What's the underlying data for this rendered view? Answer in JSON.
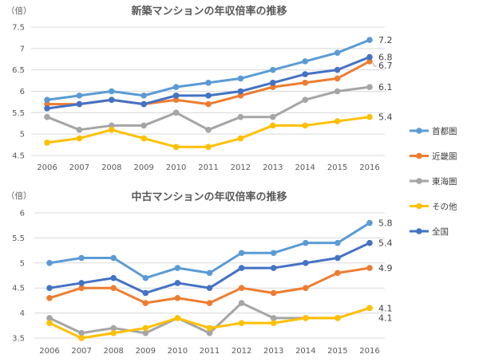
{
  "legend": {
    "placement": "right",
    "items": [
      {
        "name": "首都圏",
        "color": "#5B9BD5"
      },
      {
        "name": "近畿圏",
        "color": "#ED7D31"
      },
      {
        "name": "東海圏",
        "color": "#A5A5A5"
      },
      {
        "name": "その他",
        "color": "#FFC000"
      },
      {
        "name": "全国",
        "color": "#4472C4"
      }
    ]
  },
  "chart_data": [
    {
      "type": "line",
      "title": "新築マンションの年収倍率の推移",
      "ylabel": "（倍）",
      "xlabel": "",
      "categories": [
        "2006",
        "2007",
        "2008",
        "2009",
        "2010",
        "2011",
        "2012",
        "2013",
        "2014",
        "2015",
        "2016"
      ],
      "ylim": [
        4.5,
        7.5
      ],
      "yticks": [
        "4.5",
        "5",
        "5.5",
        "6",
        "6.5",
        "7",
        "7.5"
      ],
      "grid": true,
      "series": [
        {
          "name": "首都圏",
          "color": "#5B9BD5",
          "values": [
            5.8,
            5.9,
            6.0,
            5.9,
            6.1,
            6.2,
            6.3,
            6.5,
            6.7,
            6.9,
            7.2
          ],
          "end_label": "7.2"
        },
        {
          "name": "近畿圏",
          "color": "#ED7D31",
          "values": [
            5.7,
            5.7,
            5.8,
            5.7,
            5.8,
            5.7,
            5.9,
            6.1,
            6.2,
            6.3,
            6.7
          ],
          "end_label": "6.7"
        },
        {
          "name": "東海圏",
          "color": "#A5A5A5",
          "values": [
            5.4,
            5.1,
            5.2,
            5.2,
            5.5,
            5.1,
            5.4,
            5.4,
            5.8,
            6.0,
            6.1
          ],
          "end_label": "6.1"
        },
        {
          "name": "その他",
          "color": "#FFC000",
          "values": [
            4.8,
            4.9,
            5.1,
            4.9,
            4.7,
            4.7,
            4.9,
            5.2,
            5.2,
            5.3,
            5.4
          ],
          "end_label": "5.4"
        },
        {
          "name": "全国",
          "color": "#4472C4",
          "values": [
            5.6,
            5.7,
            5.8,
            5.7,
            5.9,
            5.9,
            6.0,
            6.2,
            6.4,
            6.5,
            6.8
          ],
          "end_label": "6.8"
        }
      ]
    },
    {
      "type": "line",
      "title": "中古マンションの年収倍率の推移",
      "ylabel": "（倍）",
      "xlabel": "",
      "categories": [
        "2006",
        "2007",
        "2008",
        "2009",
        "2010",
        "2011",
        "2012",
        "2013",
        "2014",
        "2015",
        "2016"
      ],
      "ylim": [
        3.5,
        6
      ],
      "yticks": [
        "3.5",
        "4",
        "4.5",
        "5",
        "5.5",
        "6"
      ],
      "grid": true,
      "series": [
        {
          "name": "首都圏",
          "color": "#5B9BD5",
          "values": [
            5.0,
            5.1,
            5.1,
            4.7,
            4.9,
            4.8,
            5.2,
            5.2,
            5.4,
            5.4,
            5.8
          ],
          "end_label": "5.8"
        },
        {
          "name": "近畿圏",
          "color": "#ED7D31",
          "values": [
            4.3,
            4.5,
            4.5,
            4.2,
            4.3,
            4.2,
            4.5,
            4.4,
            4.5,
            4.8,
            4.9
          ],
          "end_label": "4.9"
        },
        {
          "name": "東海圏",
          "color": "#A5A5A5",
          "values": [
            3.9,
            3.6,
            3.7,
            3.6,
            3.9,
            3.6,
            4.2,
            3.9,
            3.9,
            3.9,
            4.1
          ],
          "end_label": "4.1"
        },
        {
          "name": "その他",
          "color": "#FFC000",
          "values": [
            3.8,
            3.5,
            3.6,
            3.7,
            3.9,
            3.7,
            3.8,
            3.8,
            3.9,
            3.9,
            4.1
          ],
          "end_label": "4.1"
        },
        {
          "name": "全国",
          "color": "#4472C4",
          "values": [
            4.5,
            4.6,
            4.7,
            4.4,
            4.6,
            4.5,
            4.9,
            4.9,
            5.0,
            5.1,
            5.4
          ],
          "end_label": "5.4"
        }
      ]
    }
  ]
}
